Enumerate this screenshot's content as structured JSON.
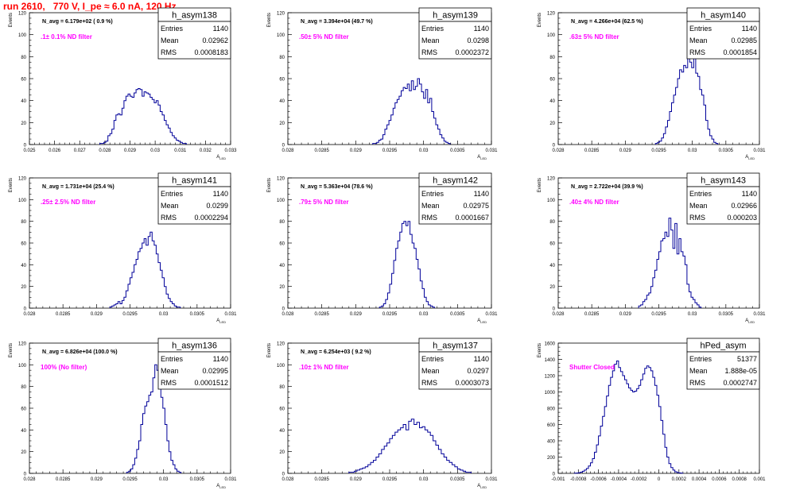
{
  "page": {
    "title": "run 2610,   770 V, I_pe ≈ 6.0 nA, 120 Hz",
    "title_color": "#ff0000"
  },
  "style": {
    "histogram_color": "#000099",
    "annotation_color": "#ff00ff",
    "axis_color": "#000000"
  },
  "chart_data": [
    {
      "type": "histogram",
      "name": "h_asym138",
      "xlabel": "A_{LED}",
      "ylabel": "Events",
      "xlim": [
        0.025,
        0.033
      ],
      "ylim": [
        0,
        120
      ],
      "xticks": [
        "0.025",
        "0.026",
        "0.027",
        "0.028",
        "0.029",
        "0.03",
        "0.031",
        "0.032",
        "0.033"
      ],
      "yticks": [
        "0",
        "20",
        "40",
        "60",
        "80",
        "100",
        "120"
      ],
      "stats": {
        "entries": "1140",
        "mean": "0.02962",
        "rms": "0.0008183"
      },
      "labels": {
        "entries": "Entries",
        "mean": "Mean",
        "rms": "RMS"
      },
      "navg": "N_avg = 6.179e+02 ( 0.9 %)",
      "annotation": ".1± 0.1% ND filter",
      "bins": {
        "start": 0.0278,
        "width": 8e-05,
        "values": [
          1,
          1,
          2,
          3,
          8,
          10,
          14,
          22,
          27,
          28,
          27,
          33,
          40,
          44,
          46,
          44,
          43,
          47,
          50,
          51,
          50,
          44,
          48,
          47,
          46,
          43,
          41,
          38,
          40,
          36,
          30,
          27,
          22,
          18,
          15,
          11,
          8,
          6,
          4,
          3,
          2,
          1,
          1
        ]
      }
    },
    {
      "type": "histogram",
      "name": "h_asym139",
      "xlabel": "A_{LED}",
      "ylabel": "Events",
      "xlim": [
        0.028,
        0.031
      ],
      "ylim": [
        0,
        120
      ],
      "xticks": [
        "0.028",
        "0.0285",
        "0.029",
        "0.0295",
        "0.03",
        "0.0305",
        "0.031"
      ],
      "yticks": [
        "0",
        "20",
        "40",
        "60",
        "80",
        "100",
        "120"
      ],
      "stats": {
        "entries": "1140",
        "mean": "0.0298",
        "rms": "0.0002372"
      },
      "labels": {
        "entries": "Entries",
        "mean": "Mean",
        "rms": "RMS"
      },
      "navg": "N_avg = 3.394e+04 (49.7 %)",
      "annotation": ".50± 5% ND filter",
      "bins": {
        "start": 0.02925,
        "width": 3e-05,
        "values": [
          1,
          1,
          2,
          4,
          5,
          9,
          14,
          18,
          22,
          27,
          33,
          38,
          41,
          44,
          49,
          52,
          51,
          55,
          49,
          58,
          50,
          53,
          60,
          55,
          48,
          42,
          50,
          38,
          42,
          30,
          24,
          18,
          14,
          9,
          6,
          3,
          2,
          1
        ]
      }
    },
    {
      "type": "histogram",
      "name": "h_asym140",
      "xlabel": "A_{LED}",
      "ylabel": "Events",
      "xlim": [
        0.028,
        0.031
      ],
      "ylim": [
        0,
        120
      ],
      "xticks": [
        "0.028",
        "0.0285",
        "0.029",
        "0.0295",
        "0.03",
        "0.0305",
        "0.031"
      ],
      "yticks": [
        "0",
        "20",
        "40",
        "60",
        "80",
        "100",
        "120"
      ],
      "stats": {
        "entries": "1140",
        "mean": "0.02985",
        "rms": "0.0001854"
      },
      "labels": {
        "entries": "Entries",
        "mean": "Mean",
        "rms": "RMS"
      },
      "navg": "N_avg = 4.266e+04 (62.5 %)",
      "annotation": ".63± 5% ND filter",
      "bins": {
        "start": 0.02945,
        "width": 3e-05,
        "values": [
          1,
          2,
          3,
          6,
          10,
          16,
          22,
          30,
          38,
          45,
          52,
          60,
          68,
          66,
          72,
          70,
          87,
          75,
          70,
          80,
          65,
          62,
          50,
          45,
          36,
          22,
          14,
          8,
          5,
          2,
          1
        ]
      }
    },
    {
      "type": "histogram",
      "name": "h_asym141",
      "xlabel": "A_{LED}",
      "ylabel": "Events",
      "xlim": [
        0.028,
        0.031
      ],
      "ylim": [
        0,
        120
      ],
      "xticks": [
        "0.028",
        "0.0285",
        "0.029",
        "0.0295",
        "0.03",
        "0.0305",
        "0.031"
      ],
      "yticks": [
        "0",
        "20",
        "40",
        "60",
        "80",
        "100",
        "120"
      ],
      "stats": {
        "entries": "1140",
        "mean": "0.0299",
        "rms": "0.0002294"
      },
      "labels": {
        "entries": "Entries",
        "mean": "Mean",
        "rms": "RMS"
      },
      "navg": "N_avg = 1.731e+04 (25.4 %)",
      "annotation": ".25± 2.5% ND filter",
      "bins": {
        "start": 0.0292,
        "width": 3e-05,
        "values": [
          1,
          2,
          3,
          4,
          6,
          4,
          7,
          10,
          16,
          22,
          28,
          33,
          40,
          45,
          52,
          55,
          60,
          64,
          58,
          66,
          70,
          62,
          58,
          50,
          42,
          35,
          28,
          20,
          13,
          9,
          6,
          4,
          2,
          1,
          1
        ]
      }
    },
    {
      "type": "histogram",
      "name": "h_asym142",
      "xlabel": "A_{LED}",
      "ylabel": "Events",
      "xlim": [
        0.028,
        0.031
      ],
      "ylim": [
        0,
        120
      ],
      "xticks": [
        "0.028",
        "0.0285",
        "0.029",
        "0.0295",
        "0.03",
        "0.0305",
        "0.031"
      ],
      "yticks": [
        "0",
        "20",
        "40",
        "60",
        "80",
        "100",
        "120"
      ],
      "stats": {
        "entries": "1140",
        "mean": "0.02975",
        "rms": "0.0001667"
      },
      "labels": {
        "entries": "Entries",
        "mean": "Mean",
        "rms": "RMS"
      },
      "navg": "N_avg = 5.363e+04 (78.6 %)",
      "annotation": ".79± 5% ND filter",
      "bins": {
        "start": 0.02935,
        "width": 3e-05,
        "values": [
          1,
          2,
          4,
          8,
          14,
          22,
          32,
          44,
          55,
          62,
          70,
          78,
          80,
          76,
          80,
          68,
          60,
          55,
          45,
          36,
          25,
          18,
          10,
          6,
          3,
          2,
          1
        ]
      }
    },
    {
      "type": "histogram",
      "name": "h_asym143",
      "xlabel": "A_{LED}",
      "ylabel": "Events",
      "xlim": [
        0.028,
        0.031
      ],
      "ylim": [
        0,
        120
      ],
      "xticks": [
        "0.028",
        "0.0285",
        "0.029",
        "0.0295",
        "0.03",
        "0.0305",
        "0.031"
      ],
      "yticks": [
        "0",
        "20",
        "40",
        "60",
        "80",
        "100",
        "120"
      ],
      "stats": {
        "entries": "1140",
        "mean": "0.02966",
        "rms": "0.000203"
      },
      "labels": {
        "entries": "Entries",
        "mean": "Mean",
        "rms": "RMS"
      },
      "navg": "N_avg = 2.722e+04 (39.9 %)",
      "annotation": ".40± 4% ND filter",
      "bins": {
        "start": 0.0292,
        "width": 3e-05,
        "values": [
          2,
          3,
          6,
          8,
          12,
          14,
          20,
          28,
          35,
          45,
          52,
          62,
          64,
          70,
          66,
          83,
          72,
          55,
          78,
          50,
          64,
          52,
          48,
          40,
          22,
          15,
          10,
          8,
          5,
          3,
          1
        ]
      }
    },
    {
      "type": "histogram",
      "name": "h_asym136",
      "xlabel": "A_{LED}",
      "ylabel": "Events",
      "xlim": [
        0.028,
        0.031
      ],
      "ylim": [
        0,
        120
      ],
      "xticks": [
        "0.028",
        "0.0285",
        "0.029",
        "0.0295",
        "0.03",
        "0.0305",
        "0.031"
      ],
      "yticks": [
        "0",
        "20",
        "40",
        "60",
        "80",
        "100",
        "120"
      ],
      "stats": {
        "entries": "1140",
        "mean": "0.02995",
        "rms": "0.0001512"
      },
      "labels": {
        "entries": "Entries",
        "mean": "Mean",
        "rms": "RMS"
      },
      "navg": "N_avg = 6.826e+04 (100.0 %)",
      "annotation": "100% (No filter)",
      "bins": {
        "start": 0.02945,
        "width": 3e-05,
        "values": [
          1,
          2,
          4,
          8,
          14,
          22,
          30,
          45,
          55,
          62,
          66,
          72,
          75,
          88,
          100,
          95,
          90,
          70,
          60,
          45,
          30,
          20,
          12,
          8,
          4,
          2,
          1
        ]
      }
    },
    {
      "type": "histogram",
      "name": "h_asym137",
      "xlabel": "A_{LED}",
      "ylabel": "Events",
      "xlim": [
        0.028,
        0.031
      ],
      "ylim": [
        0,
        120
      ],
      "xticks": [
        "0.028",
        "0.0285",
        "0.029",
        "0.0295",
        "0.03",
        "0.0305",
        "0.031"
      ],
      "yticks": [
        "0",
        "20",
        "40",
        "60",
        "80",
        "100",
        "120"
      ],
      "stats": {
        "entries": "1140",
        "mean": "0.0297",
        "rms": "0.0003073"
      },
      "labels": {
        "entries": "Entries",
        "mean": "Mean",
        "rms": "RMS"
      },
      "navg": "N_avg = 6.254e+03 ( 9.2 %)",
      "annotation": ".10± 1% ND filter",
      "bins": {
        "start": 0.0289,
        "width": 4e-05,
        "values": [
          1,
          1,
          2,
          3,
          4,
          5,
          6,
          8,
          10,
          12,
          15,
          18,
          22,
          25,
          28,
          32,
          35,
          38,
          40,
          42,
          45,
          40,
          48,
          50,
          45,
          47,
          42,
          43,
          40,
          38,
          35,
          30,
          26,
          22,
          18,
          15,
          12,
          10,
          8,
          6,
          4,
          3,
          2,
          1,
          1
        ]
      }
    },
    {
      "type": "histogram",
      "name": "hPed_asym",
      "xlabel": "",
      "ylabel": "Events",
      "xlim": [
        -0.001,
        0.001
      ],
      "ylim": [
        0,
        1600
      ],
      "xticks": [
        "-0.001",
        "-0.0008",
        "-0.0006",
        "-0.0004",
        "-0.0002",
        "0",
        "0.0002",
        "0.0004",
        "0.0006",
        "0.0008",
        "0.001"
      ],
      "yticks": [
        "0",
        "200",
        "400",
        "600",
        "800",
        "1000",
        "1200",
        "1400",
        "1600"
      ],
      "stats": {
        "entries": "51377",
        "mean": "1.888e-05",
        "rms": "0.0002747"
      },
      "labels": {
        "entries": "Entries",
        "mean": "Mean",
        "rms": "RMS"
      },
      "navg": "",
      "annotation": "Shutter Closed",
      "bins": {
        "start": -0.00084,
        "width": 2e-05,
        "values": [
          2,
          4,
          8,
          15,
          25,
          40,
          60,
          90,
          130,
          180,
          260,
          350,
          460,
          580,
          700,
          820,
          950,
          1080,
          1180,
          1260,
          1340,
          1380,
          1300,
          1250,
          1200,
          1150,
          1100,
          1050,
          1020,
          1000,
          1010,
          1040,
          1080,
          1150,
          1220,
          1290,
          1320,
          1300,
          1260,
          1180,
          1080,
          960,
          820,
          650,
          480,
          320,
          200,
          120,
          70,
          40,
          20,
          10,
          5,
          2
        ]
      }
    }
  ]
}
